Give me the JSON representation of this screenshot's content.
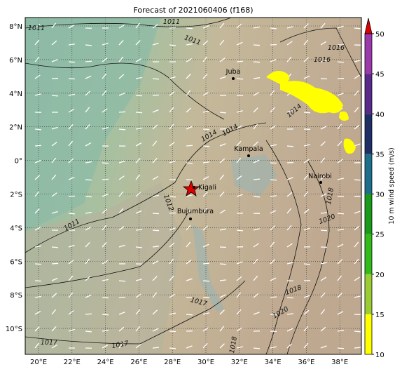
{
  "title": "Forecast of 2021060406 (f168)",
  "lon_ticks": [
    {
      "value": 20,
      "label": "20°E"
    },
    {
      "value": 22,
      "label": "22°E"
    },
    {
      "value": 24,
      "label": "24°E"
    },
    {
      "value": 26,
      "label": "26°E"
    },
    {
      "value": 28,
      "label": "28°E"
    },
    {
      "value": 30,
      "label": "30°E"
    },
    {
      "value": 32,
      "label": "32°E"
    },
    {
      "value": 34,
      "label": "34°E"
    },
    {
      "value": 36,
      "label": "36°E"
    },
    {
      "value": 38,
      "label": "38°E"
    }
  ],
  "lat_ticks": [
    {
      "value": 8,
      "label": "8°N"
    },
    {
      "value": 6,
      "label": "6°N"
    },
    {
      "value": 4,
      "label": "4°N"
    },
    {
      "value": 2,
      "label": "2°N"
    },
    {
      "value": 0,
      "label": "0°"
    },
    {
      "value": -2,
      "label": "2°S"
    },
    {
      "value": -4,
      "label": "4°S"
    },
    {
      "value": -6,
      "label": "6°S"
    },
    {
      "value": -8,
      "label": "8°S"
    },
    {
      "value": -10,
      "label": "10°S"
    }
  ],
  "cities": [
    "Juba",
    "Kampala",
    "Kigali",
    "Bujumbura",
    "Nairobi"
  ],
  "contour_labels": [
    "1011",
    "1011",
    "1011",
    "1014",
    "1014",
    "1016",
    "1016",
    "1014",
    "1012",
    "1011",
    "1020",
    "1018",
    "1020",
    "1017",
    "1017",
    "1017",
    "1018",
    "1018"
  ],
  "colorbar": {
    "label": "10 m wind speed (m/s)",
    "range": [
      10,
      50
    ],
    "ticks": [
      10,
      15,
      20,
      25,
      30,
      35,
      40,
      45,
      50
    ],
    "colors": [
      "#ffff00",
      "#9acd32",
      "#33bb1a",
      "#1a9a1a",
      "#1f6f8b",
      "#1f2f66",
      "#5a2a8a",
      "#9a3aaa"
    ],
    "extend_color": "#e00000"
  }
}
